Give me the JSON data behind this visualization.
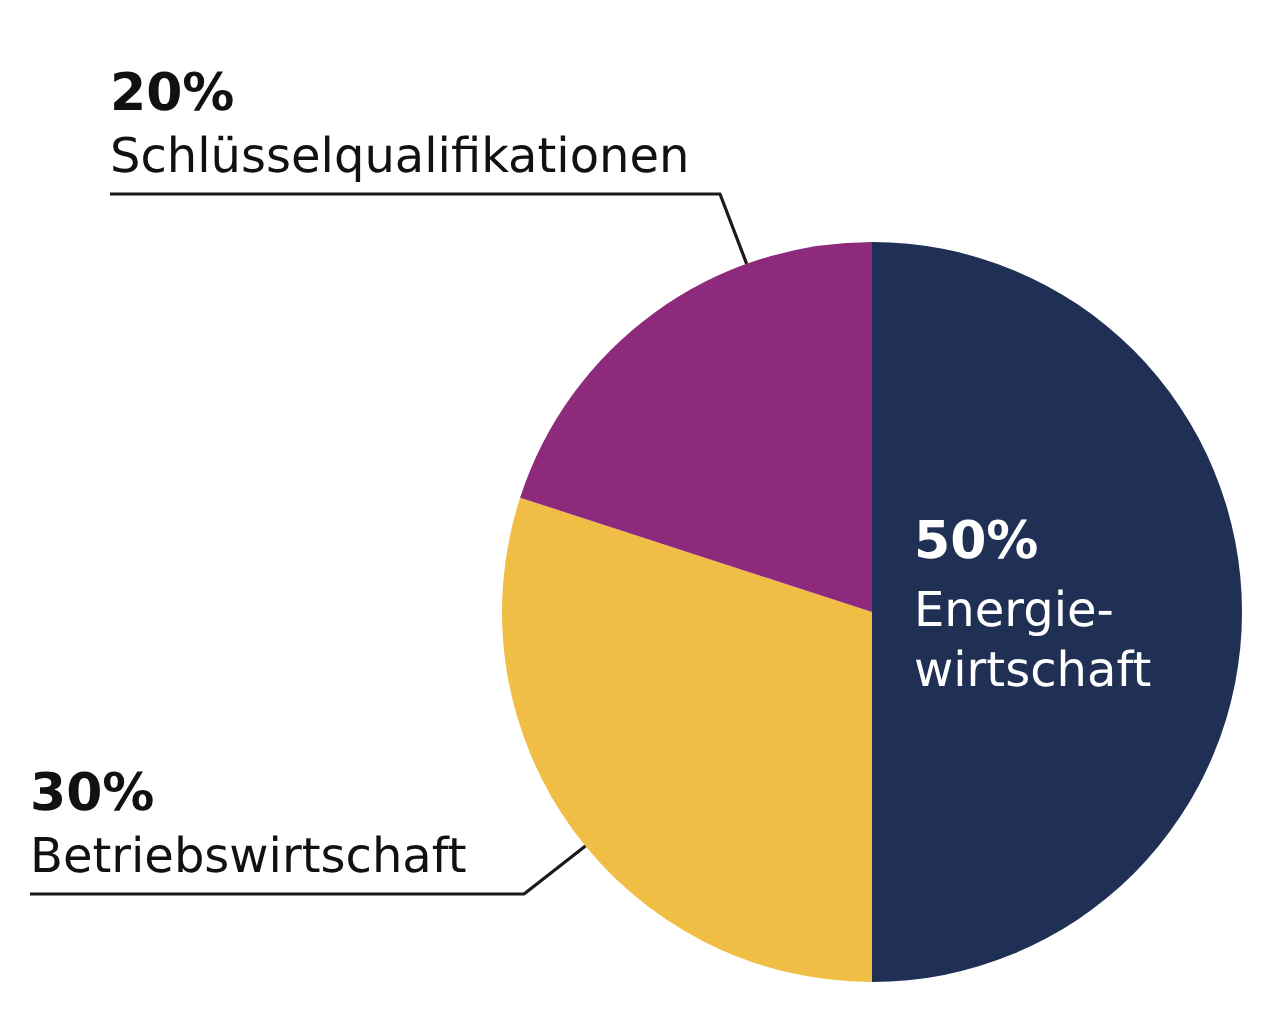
{
  "chart_data": {
    "type": "pie",
    "categories": [
      "Energie-\nwirtschaft",
      "Betriebswirtschaft",
      "Schlüsselqualifikationen"
    ],
    "values": [
      50,
      30,
      20
    ],
    "colors": [
      "#1f3054",
      "#f0bd45",
      "#8e2a7b"
    ],
    "value_labels": [
      "50%",
      "30%",
      "20%"
    ]
  }
}
